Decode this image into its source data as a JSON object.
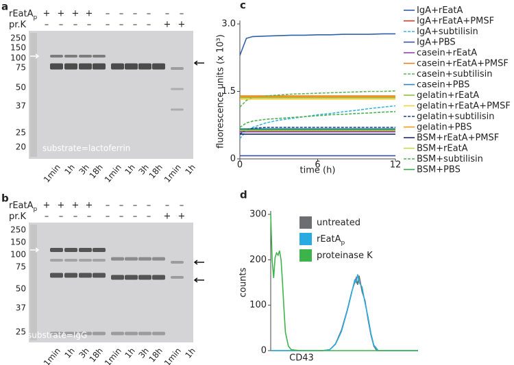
{
  "panels": [
    {
      "label": "a",
      "rows": [
        {
          "name": "rEatA",
          "name_sub": "p",
          "marks": [
            "+",
            "+",
            "+",
            "+",
            "–",
            "–",
            "–",
            "–",
            "–",
            "–"
          ]
        },
        {
          "name": "pr.K",
          "marks": [
            "–",
            "–",
            "–",
            "–",
            "–",
            "–",
            "–",
            "–",
            "+",
            "+"
          ]
        }
      ],
      "markers": [
        "250",
        "150",
        "100",
        "75",
        "50",
        "37",
        "25",
        "20"
      ],
      "lanes": [
        "1min",
        "1h",
        "3h",
        "18h",
        "1min",
        "1h",
        "3h",
        "18h",
        "1min",
        "1h"
      ],
      "caption": "substrate=lactoferrin"
    },
    {
      "label": "b",
      "rows": [
        {
          "name": "rEatA",
          "name_sub": "p",
          "marks": [
            "+",
            "+",
            "+",
            "+",
            "–",
            "–",
            "–",
            "–",
            "–",
            "–"
          ]
        },
        {
          "name": "pr.K",
          "marks": [
            "–",
            "–",
            "–",
            "–",
            "–",
            "–",
            "–",
            "–",
            "+",
            "+"
          ]
        }
      ],
      "markers": [
        "250",
        "150",
        "100",
        "75",
        "50",
        "37",
        "25"
      ],
      "lanes": [
        "1min",
        "1h",
        "3h",
        "18h",
        "1min",
        "1h",
        "3h",
        "18h",
        "1min",
        "1h"
      ],
      "caption": "substrate=IgG"
    }
  ],
  "chart_data": [
    {
      "type": "line",
      "label": "c",
      "x_label": "time (h)",
      "y_label": "fluorescence units (x 10³)",
      "xlim": [
        0,
        12
      ],
      "xticks": [
        0,
        6,
        12
      ],
      "ylim": [
        0,
        3
      ],
      "yticks": [
        0,
        1.5,
        {
          "value": 3,
          "label": "3.0"
        }
      ],
      "x": [
        0,
        0.5,
        1,
        2,
        3,
        4,
        5,
        6,
        7,
        8,
        9,
        10,
        11,
        12
      ],
      "series": [
        {
          "name": "IgA+rEatA",
          "color": "#2e5fa8",
          "values": [
            2.3,
            2.68,
            2.72,
            2.73,
            2.74,
            2.75,
            2.75,
            2.76,
            2.76,
            2.77,
            2.77,
            2.77,
            2.78,
            2.78
          ]
        },
        {
          "name": "IgA+rEatA+PMSF",
          "color": "#c0392b",
          "values": [
            0.62,
            0.62,
            0.62,
            0.62,
            0.62,
            0.62,
            0.62,
            0.62,
            0.62,
            0.62,
            0.62,
            0.62,
            0.62,
            0.62
          ]
        },
        {
          "name": "IgA+subtilisin",
          "color": "#33b5e5",
          "dash": true,
          "values": [
            0.45,
            0.62,
            0.7,
            0.8,
            0.86,
            0.9,
            0.94,
            0.98,
            1.01,
            1.05,
            1.08,
            1.12,
            1.15,
            1.18
          ]
        },
        {
          "name": "IgA+PBS",
          "color": "#3a4fa3",
          "values": [
            0.07,
            0.07,
            0.07,
            0.07,
            0.07,
            0.07,
            0.07,
            0.07,
            0.07,
            0.07,
            0.07,
            0.07,
            0.07,
            0.07
          ]
        },
        {
          "name": "casein+rEatA",
          "color": "#8e44ad",
          "values": [
            0.6,
            0.6,
            0.6,
            0.6,
            0.6,
            0.6,
            0.6,
            0.6,
            0.6,
            0.6,
            0.6,
            0.6,
            0.6,
            0.6
          ]
        },
        {
          "name": "casein+rEatA+PMSF",
          "color": "#e67e22",
          "values": [
            1.4,
            1.4,
            1.4,
            1.4,
            1.4,
            1.4,
            1.4,
            1.4,
            1.4,
            1.4,
            1.4,
            1.4,
            1.4,
            1.4
          ]
        },
        {
          "name": "casein+subtilisin",
          "color": "#5ab552",
          "dash": true,
          "values": [
            1.15,
            1.3,
            1.36,
            1.4,
            1.42,
            1.44,
            1.45,
            1.46,
            1.47,
            1.48,
            1.49,
            1.5,
            1.5,
            1.51
          ]
        },
        {
          "name": "casein+PBS",
          "color": "#2e86c1",
          "values": [
            0.67,
            0.67,
            0.67,
            0.67,
            0.67,
            0.67,
            0.67,
            0.67,
            0.67,
            0.67,
            0.67,
            0.67,
            0.67,
            0.67
          ]
        },
        {
          "name": "gelatin+rEatA",
          "color": "#8dbf3a",
          "values": [
            1.36,
            1.36,
            1.36,
            1.36,
            1.36,
            1.36,
            1.36,
            1.36,
            1.36,
            1.36,
            1.36,
            1.36,
            1.36,
            1.36
          ]
        },
        {
          "name": "gelatin+rEatA+PMSF",
          "color": "#f4d03f",
          "values": [
            1.33,
            1.33,
            1.33,
            1.33,
            1.33,
            1.33,
            1.33,
            1.33,
            1.33,
            1.33,
            1.33,
            1.33,
            1.33,
            1.33
          ]
        },
        {
          "name": "gelatin+subtilisin",
          "color": "#1f3a93",
          "dash": true,
          "values": [
            0.55,
            0.65,
            0.68,
            0.7,
            0.7,
            0.7,
            0.7,
            0.7,
            0.7,
            0.7,
            0.7,
            0.7,
            0.7,
            0.7
          ]
        },
        {
          "name": "gelatin+PBS",
          "color": "#f39c12",
          "values": [
            1.38,
            1.38,
            1.38,
            1.38,
            1.38,
            1.38,
            1.38,
            1.38,
            1.38,
            1.38,
            1.38,
            1.38,
            1.38,
            1.38
          ]
        },
        {
          "name": "BSM+rEatA+PMSF",
          "color": "#1a2c6b",
          "values": [
            0.55,
            0.55,
            0.55,
            0.55,
            0.55,
            0.55,
            0.55,
            0.55,
            0.55,
            0.55,
            0.55,
            0.55,
            0.55,
            0.55
          ]
        },
        {
          "name": "BSM+rEatA",
          "color": "#c5d94a",
          "values": [
            0.63,
            0.63,
            0.63,
            0.63,
            0.63,
            0.63,
            0.63,
            0.63,
            0.63,
            0.63,
            0.63,
            0.63,
            0.63,
            0.63
          ]
        },
        {
          "name": "BSM+subtilisin",
          "color": "#4caf50",
          "dash": true,
          "values": [
            0.7,
            0.8,
            0.84,
            0.88,
            0.9,
            0.92,
            0.94,
            0.96,
            0.98,
            0.99,
            1.01,
            1.02,
            1.04,
            1.05
          ]
        },
        {
          "name": "BSM+PBS",
          "color": "#3aa34a",
          "values": [
            0.65,
            0.65,
            0.65,
            0.65,
            0.65,
            0.65,
            0.65,
            0.65,
            0.65,
            0.65,
            0.65,
            0.65,
            0.65,
            0.65
          ]
        }
      ]
    },
    {
      "type": "line",
      "label": "d",
      "x_label": "CD43",
      "y_label": "counts",
      "xlim": [
        0,
        100
      ],
      "ylim": [
        0,
        300
      ],
      "yticks": [
        0,
        100,
        200,
        300
      ],
      "series": [
        {
          "name": "untreated",
          "color": "#6d6e71",
          "x": [
            0,
            35,
            40,
            44,
            48,
            52,
            55,
            57,
            58,
            59,
            60,
            62,
            64,
            66,
            68,
            70,
            72,
            100
          ],
          "values": [
            0,
            0,
            2,
            15,
            45,
            90,
            130,
            150,
            160,
            145,
            165,
            130,
            110,
            70,
            35,
            10,
            0,
            0
          ]
        },
        {
          "name": "rEatA",
          "name_sub": "p",
          "color": "#29abe2",
          "x": [
            0,
            35,
            40,
            44,
            48,
            52,
            55,
            57,
            58,
            59,
            60,
            62,
            64,
            66,
            68,
            70,
            73,
            100
          ],
          "values": [
            0,
            0,
            2,
            14,
            42,
            88,
            128,
            155,
            150,
            168,
            150,
            140,
            105,
            75,
            38,
            12,
            0,
            0
          ]
        },
        {
          "name": "proteinase K",
          "color": "#3cb44b",
          "x": [
            0,
            1,
            2,
            3,
            4,
            5,
            6,
            7,
            8,
            9,
            10,
            12,
            14,
            20,
            100
          ],
          "values": [
            300,
            200,
            160,
            205,
            215,
            210,
            220,
            200,
            150,
            90,
            40,
            10,
            2,
            0,
            0
          ]
        }
      ]
    }
  ]
}
